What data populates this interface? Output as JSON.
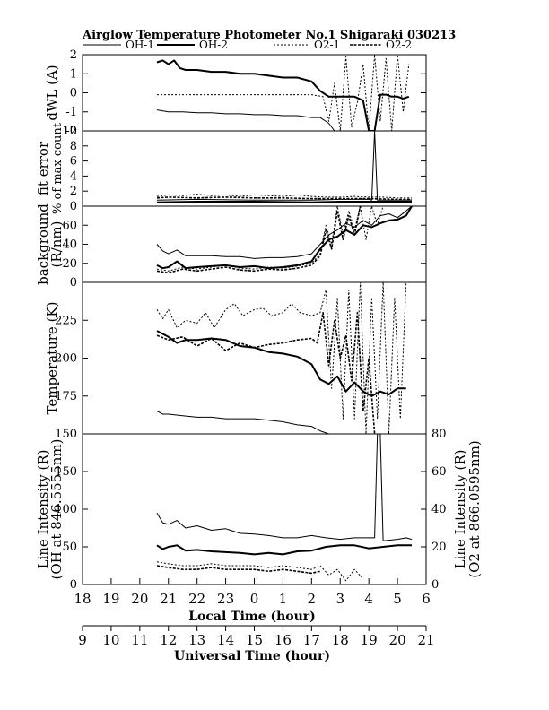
{
  "chart_data": {
    "type": "line",
    "title": "Airglow Temperature Photometer No.1  Shigaraki  030213",
    "legend": [
      "OH-1",
      "OH-2",
      "O2-1",
      "O2-2"
    ],
    "x_top_label": "Local Time (hour)",
    "x_top_ticks": [
      "18",
      "19",
      "20",
      "21",
      "22",
      "23",
      "0",
      "1",
      "2",
      "3",
      "4",
      "5",
      "6"
    ],
    "x_bottom_label": "Universal Time (hour)",
    "x_bottom_ticks": [
      "9",
      "10",
      "11",
      "12",
      "13",
      "14",
      "15",
      "16",
      "17",
      "18",
      "19",
      "20",
      "21"
    ],
    "panels": [
      {
        "id": "dwl",
        "ylabel": "dWL (A)",
        "ylim": [
          -2,
          2
        ],
        "yticks": [
          "2",
          "1",
          "0",
          "-1",
          "-2"
        ],
        "series": [
          {
            "name": "OH-1",
            "x": [
              20.6,
              21,
              21.5,
              22,
              22.5,
              23,
              23.5,
              24,
              24.5,
              25,
              25.5,
              26,
              26.3,
              26.6,
              26.8,
              27.0,
              27.2,
              27.4,
              27.6
            ],
            "y": [
              -0.9,
              -1.0,
              -1.0,
              -1.05,
              -1.05,
              -1.1,
              -1.1,
              -1.15,
              -1.15,
              -1.2,
              -1.2,
              -1.3,
              -1.3,
              -1.6,
              -2,
              -2,
              -2,
              -2,
              -2
            ]
          },
          {
            "name": "OH-2",
            "x": [
              20.6,
              20.8,
              21.0,
              21.2,
              21.4,
              21.6,
              22,
              22.5,
              23,
              23.5,
              24,
              24.5,
              25,
              25.5,
              26,
              26.3,
              26.6,
              26.9,
              27.2,
              27.5,
              27.8,
              28.0,
              28.2,
              28.4,
              28.6,
              28.8,
              29.0,
              29.2,
              29.4
            ],
            "y": [
              1.6,
              1.7,
              1.5,
              1.7,
              1.3,
              1.2,
              1.2,
              1.1,
              1.1,
              1.0,
              1.0,
              0.9,
              0.8,
              0.8,
              0.6,
              0.1,
              -0.2,
              -0.2,
              -0.2,
              -0.2,
              -0.4,
              -2,
              -2,
              -0.1,
              -0.1,
              -0.2,
              -0.2,
              -0.3,
              -0.2
            ]
          },
          {
            "name": "O2-1",
            "x": [
              20.6,
              21,
              21.5,
              22,
              22.5,
              23,
              23.5,
              24,
              24.5,
              25,
              25.5,
              26,
              26.4,
              26.6,
              26.8,
              27.0,
              27.2,
              27.4,
              27.6,
              27.8,
              28.0,
              28.2,
              28.4,
              28.6,
              28.8,
              29.0,
              29.2,
              29.4
            ],
            "y": [
              -0.1,
              -0.1,
              -0.1,
              -0.1,
              -0.1,
              -0.1,
              -0.1,
              -0.1,
              -0.1,
              -0.1,
              -0.1,
              -0.1,
              -0.2,
              -1.5,
              0.5,
              -2,
              1.9,
              -1.8,
              -0.5,
              1.5,
              -2,
              2,
              -1.5,
              1.8,
              -2,
              2,
              -1,
              1.5
            ]
          }
        ]
      },
      {
        "id": "fit",
        "ylabel": "fit error",
        "ylabel2": "% of max count",
        "ylim": [
          0,
          10
        ],
        "yticks": [
          "10",
          "8",
          "6",
          "4",
          "2",
          "0"
        ],
        "series": [
          {
            "name": "OH-1",
            "x": [
              20.6,
              22,
              24,
              26,
              27,
              28,
              28.1,
              28.2,
              28.3,
              29.0,
              29.5
            ],
            "y": [
              0.8,
              0.9,
              0.8,
              0.8,
              0.9,
              0.9,
              0.8,
              10,
              0.8,
              0.8,
              0.8
            ]
          },
          {
            "name": "OH-2",
            "x": [
              20.6,
              22,
              24,
              26,
              27,
              28,
              29,
              29.5
            ],
            "y": [
              0.5,
              0.6,
              0.6,
              0.5,
              0.6,
              0.6,
              0.6,
              0.6
            ]
          },
          {
            "name": "O2-1",
            "x": [
              20.6,
              21,
              21.5,
              22,
              22.5,
              23,
              23.5,
              24,
              24.5,
              25,
              25.5,
              26,
              26.5,
              27,
              27.5,
              28,
              28.5,
              29,
              29.5
            ],
            "y": [
              1.3,
              1.5,
              1.4,
              1.6,
              1.4,
              1.5,
              1.3,
              1.5,
              1.4,
              1.3,
              1.5,
              1.3,
              1.2,
              1.2,
              1.3,
              1.2,
              1.2,
              1.1,
              1.1
            ]
          },
          {
            "name": "O2-2",
            "x": [
              20.6,
              21,
              22,
              23,
              24,
              25,
              26,
              27,
              28,
              29,
              29.5
            ],
            "y": [
              1.1,
              1.2,
              1.1,
              1.2,
              1.1,
              1.1,
              1.0,
              1.0,
              1.0,
              0.9,
              0.9
            ]
          }
        ]
      },
      {
        "id": "bg",
        "ylabel": "background",
        "ylabel2": "(R/nm)",
        "ylim": [
          0,
          80
        ],
        "yticks": [
          "60",
          "40",
          "20",
          "0"
        ],
        "series": [
          {
            "name": "OH-1",
            "x": [
              20.6,
              20.8,
              21,
              21.3,
              21.6,
              22,
              22.5,
              23,
              23.5,
              24,
              24.5,
              25,
              25.5,
              26,
              26.3,
              26.6,
              26.9,
              27.2,
              27.5,
              27.8,
              28.1,
              28.4,
              28.7,
              29.0,
              29.3,
              29.5
            ],
            "y": [
              40,
              33,
              30,
              34,
              28,
              28,
              28,
              27,
              27,
              25,
              26,
              26,
              27,
              30,
              40,
              50,
              55,
              62,
              58,
              65,
              60,
              70,
              72,
              68,
              75,
              80
            ]
          },
          {
            "name": "OH-2",
            "x": [
              20.6,
              20.8,
              21,
              21.3,
              21.6,
              22,
              22.5,
              23,
              23.5,
              24,
              24.5,
              25,
              25.5,
              26,
              26.3,
              26.6,
              26.9,
              27.2,
              27.5,
              27.8,
              28.1,
              28.4,
              28.7,
              29.0,
              29.3,
              29.5
            ],
            "y": [
              18,
              15,
              16,
              22,
              15,
              16,
              17,
              18,
              16,
              17,
              15,
              16,
              18,
              22,
              35,
              45,
              48,
              55,
              50,
              60,
              58,
              62,
              65,
              66,
              70,
              80
            ]
          },
          {
            "name": "O2-1",
            "x": [
              20.6,
              21,
              21.5,
              22,
              22.5,
              23,
              23.5,
              24,
              24.5,
              25,
              25.5,
              26,
              26.3,
              26.5,
              26.7,
              26.9,
              27.1,
              27.3,
              27.5,
              27.7,
              27.9,
              28.1,
              28.3,
              28.5
            ],
            "y": [
              14,
              12,
              16,
              14,
              16,
              18,
              15,
              14,
              16,
              15,
              17,
              20,
              30,
              60,
              40,
              80,
              50,
              75,
              55,
              80,
              45,
              80,
              60,
              80
            ]
          },
          {
            "name": "O2-2",
            "x": [
              20.6,
              21,
              21.5,
              22,
              22.5,
              23,
              23.5,
              24,
              24.5,
              25,
              25.5,
              26,
              26.3,
              26.5,
              26.7,
              26.9,
              27.1,
              27.3,
              27.5,
              27.7
            ],
            "y": [
              12,
              10,
              14,
              12,
              14,
              16,
              13,
              12,
              14,
              13,
              15,
              18,
              28,
              55,
              35,
              75,
              45,
              70,
              50,
              80
            ]
          }
        ]
      },
      {
        "id": "temp",
        "ylabel": "Temperature (K)",
        "ylim": [
          150,
          250
        ],
        "yticks": [
          "225",
          "200",
          "175",
          "150"
        ],
        "series": [
          {
            "name": "OH-1",
            "x": [
              20.6,
              20.8,
              21,
              21.5,
              22,
              22.5,
              23,
              23.5,
              24,
              24.5,
              25,
              25.5,
              26,
              26.3,
              26.6,
              26.9
            ],
            "y": [
              165,
              163,
              163,
              162,
              161,
              161,
              160,
              160,
              160,
              159,
              158,
              156,
              155,
              152,
              150,
              150
            ]
          },
          {
            "name": "OH-2",
            "x": [
              20.6,
              21,
              21.3,
              21.6,
              22,
              22.5,
              23,
              23.5,
              24,
              24.5,
              25,
              25.5,
              26,
              26.3,
              26.6,
              26.9,
              27.2,
              27.5,
              27.8,
              28.1,
              28.4,
              28.7,
              29.0,
              29.3
            ],
            "y": [
              218,
              214,
              210,
              212,
              212,
              213,
              212,
              208,
              207,
              204,
              203,
              201,
              196,
              186,
              183,
              188,
              178,
              184,
              178,
              175,
              178,
              176,
              180,
              180
            ]
          },
          {
            "name": "O2-1",
            "x": [
              20.6,
              20.8,
              21,
              21.3,
              21.6,
              22,
              22.3,
              22.6,
              23,
              23.3,
              23.6,
              24,
              24.3,
              24.6,
              25,
              25.3,
              25.6,
              26,
              26.3,
              26.5,
              26.7,
              26.9,
              27.1,
              27.3,
              27.5,
              27.7,
              27.9,
              28.1,
              28.3,
              28.5,
              28.7,
              28.9,
              29.1,
              29.3
            ],
            "y": [
              232,
              226,
              232,
              220,
              225,
              223,
              230,
              220,
              232,
              236,
              228,
              232,
              233,
              228,
              230,
              236,
              230,
              228,
              230,
              245,
              180,
              240,
              160,
              245,
              160,
              250,
              150,
              240,
              160,
              250,
              150,
              240,
              160,
              250
            ]
          },
          {
            "name": "O2-2",
            "x": [
              20.6,
              21,
              21.5,
              22,
              22.5,
              23,
              23.5,
              24,
              24.5,
              25,
              25.5,
              26,
              26.2,
              26.4,
              26.6,
              26.8,
              27.0,
              27.2,
              27.4,
              27.6,
              27.8,
              28.0,
              28.2
            ],
            "y": [
              215,
              212,
              214,
              208,
              213,
              205,
              210,
              207,
              209,
              210,
              212,
              213,
              210,
              230,
              195,
              225,
              200,
              215,
              185,
              230,
              165,
              200,
              150
            ]
          }
        ]
      },
      {
        "id": "int",
        "ylabel": "Line Intensity (R)",
        "ylabel2": "(OH at 846.5555nm)",
        "ylim": [
          0,
          200
        ],
        "yticks": [
          "150",
          "100",
          "50",
          "0"
        ],
        "ylabel_right": "Line Intensity (R)",
        "ylabel_right2": "(O2 at 866.0595nm)",
        "ylim_right": [
          0,
          80
        ],
        "yticks_right": [
          "80",
          "60",
          "40",
          "20",
          "0"
        ],
        "series": [
          {
            "name": "OH-1",
            "x": [
              20.6,
              20.8,
              21,
              21.3,
              21.6,
              22,
              22.5,
              23,
              23.5,
              24,
              24.5,
              25,
              25.5,
              26,
              26.5,
              27,
              27.5,
              28,
              28.2,
              28.3,
              28.4,
              28.5,
              29,
              29.3,
              29.5
            ],
            "y": [
              95,
              82,
              80,
              85,
              75,
              78,
              72,
              74,
              68,
              67,
              65,
              62,
              62,
              65,
              62,
              60,
              62,
              62,
              62,
              200,
              200,
              58,
              60,
              62,
              60
            ]
          },
          {
            "name": "OH-2",
            "x": [
              20.6,
              20.8,
              21,
              21.3,
              21.6,
              22,
              22.5,
              23,
              23.5,
              24,
              24.5,
              25,
              25.5,
              26,
              26.5,
              27,
              27.5,
              28,
              28.5,
              29,
              29.5
            ],
            "y": [
              52,
              47,
              50,
              52,
              45,
              46,
              44,
              43,
              42,
              40,
              42,
              40,
              44,
              45,
              50,
              52,
              52,
              48,
              50,
              52,
              52
            ]
          },
          {
            "name": "O2-1",
            "x": [
              20.6,
              21,
              21.5,
              22,
              22.5,
              23,
              23.5,
              24,
              24.5,
              25,
              25.5,
              26,
              26.3,
              26.6,
              26.9,
              27.2,
              27.5,
              27.8
            ],
            "y": [
              12,
              11,
              10,
              10,
              11,
              10,
              10,
              10,
              9,
              10,
              9,
              8,
              10,
              5,
              8,
              2,
              8,
              3
            ]
          },
          {
            "name": "O2-2",
            "x": [
              20.6,
              21,
              21.5,
              22,
              22.5,
              23,
              23.5,
              24,
              24.5,
              25,
              25.5,
              26,
              26.3
            ],
            "y": [
              10,
              9,
              8,
              8,
              9,
              8,
              8,
              8,
              7,
              8,
              7,
              6,
              7
            ]
          }
        ]
      }
    ]
  }
}
